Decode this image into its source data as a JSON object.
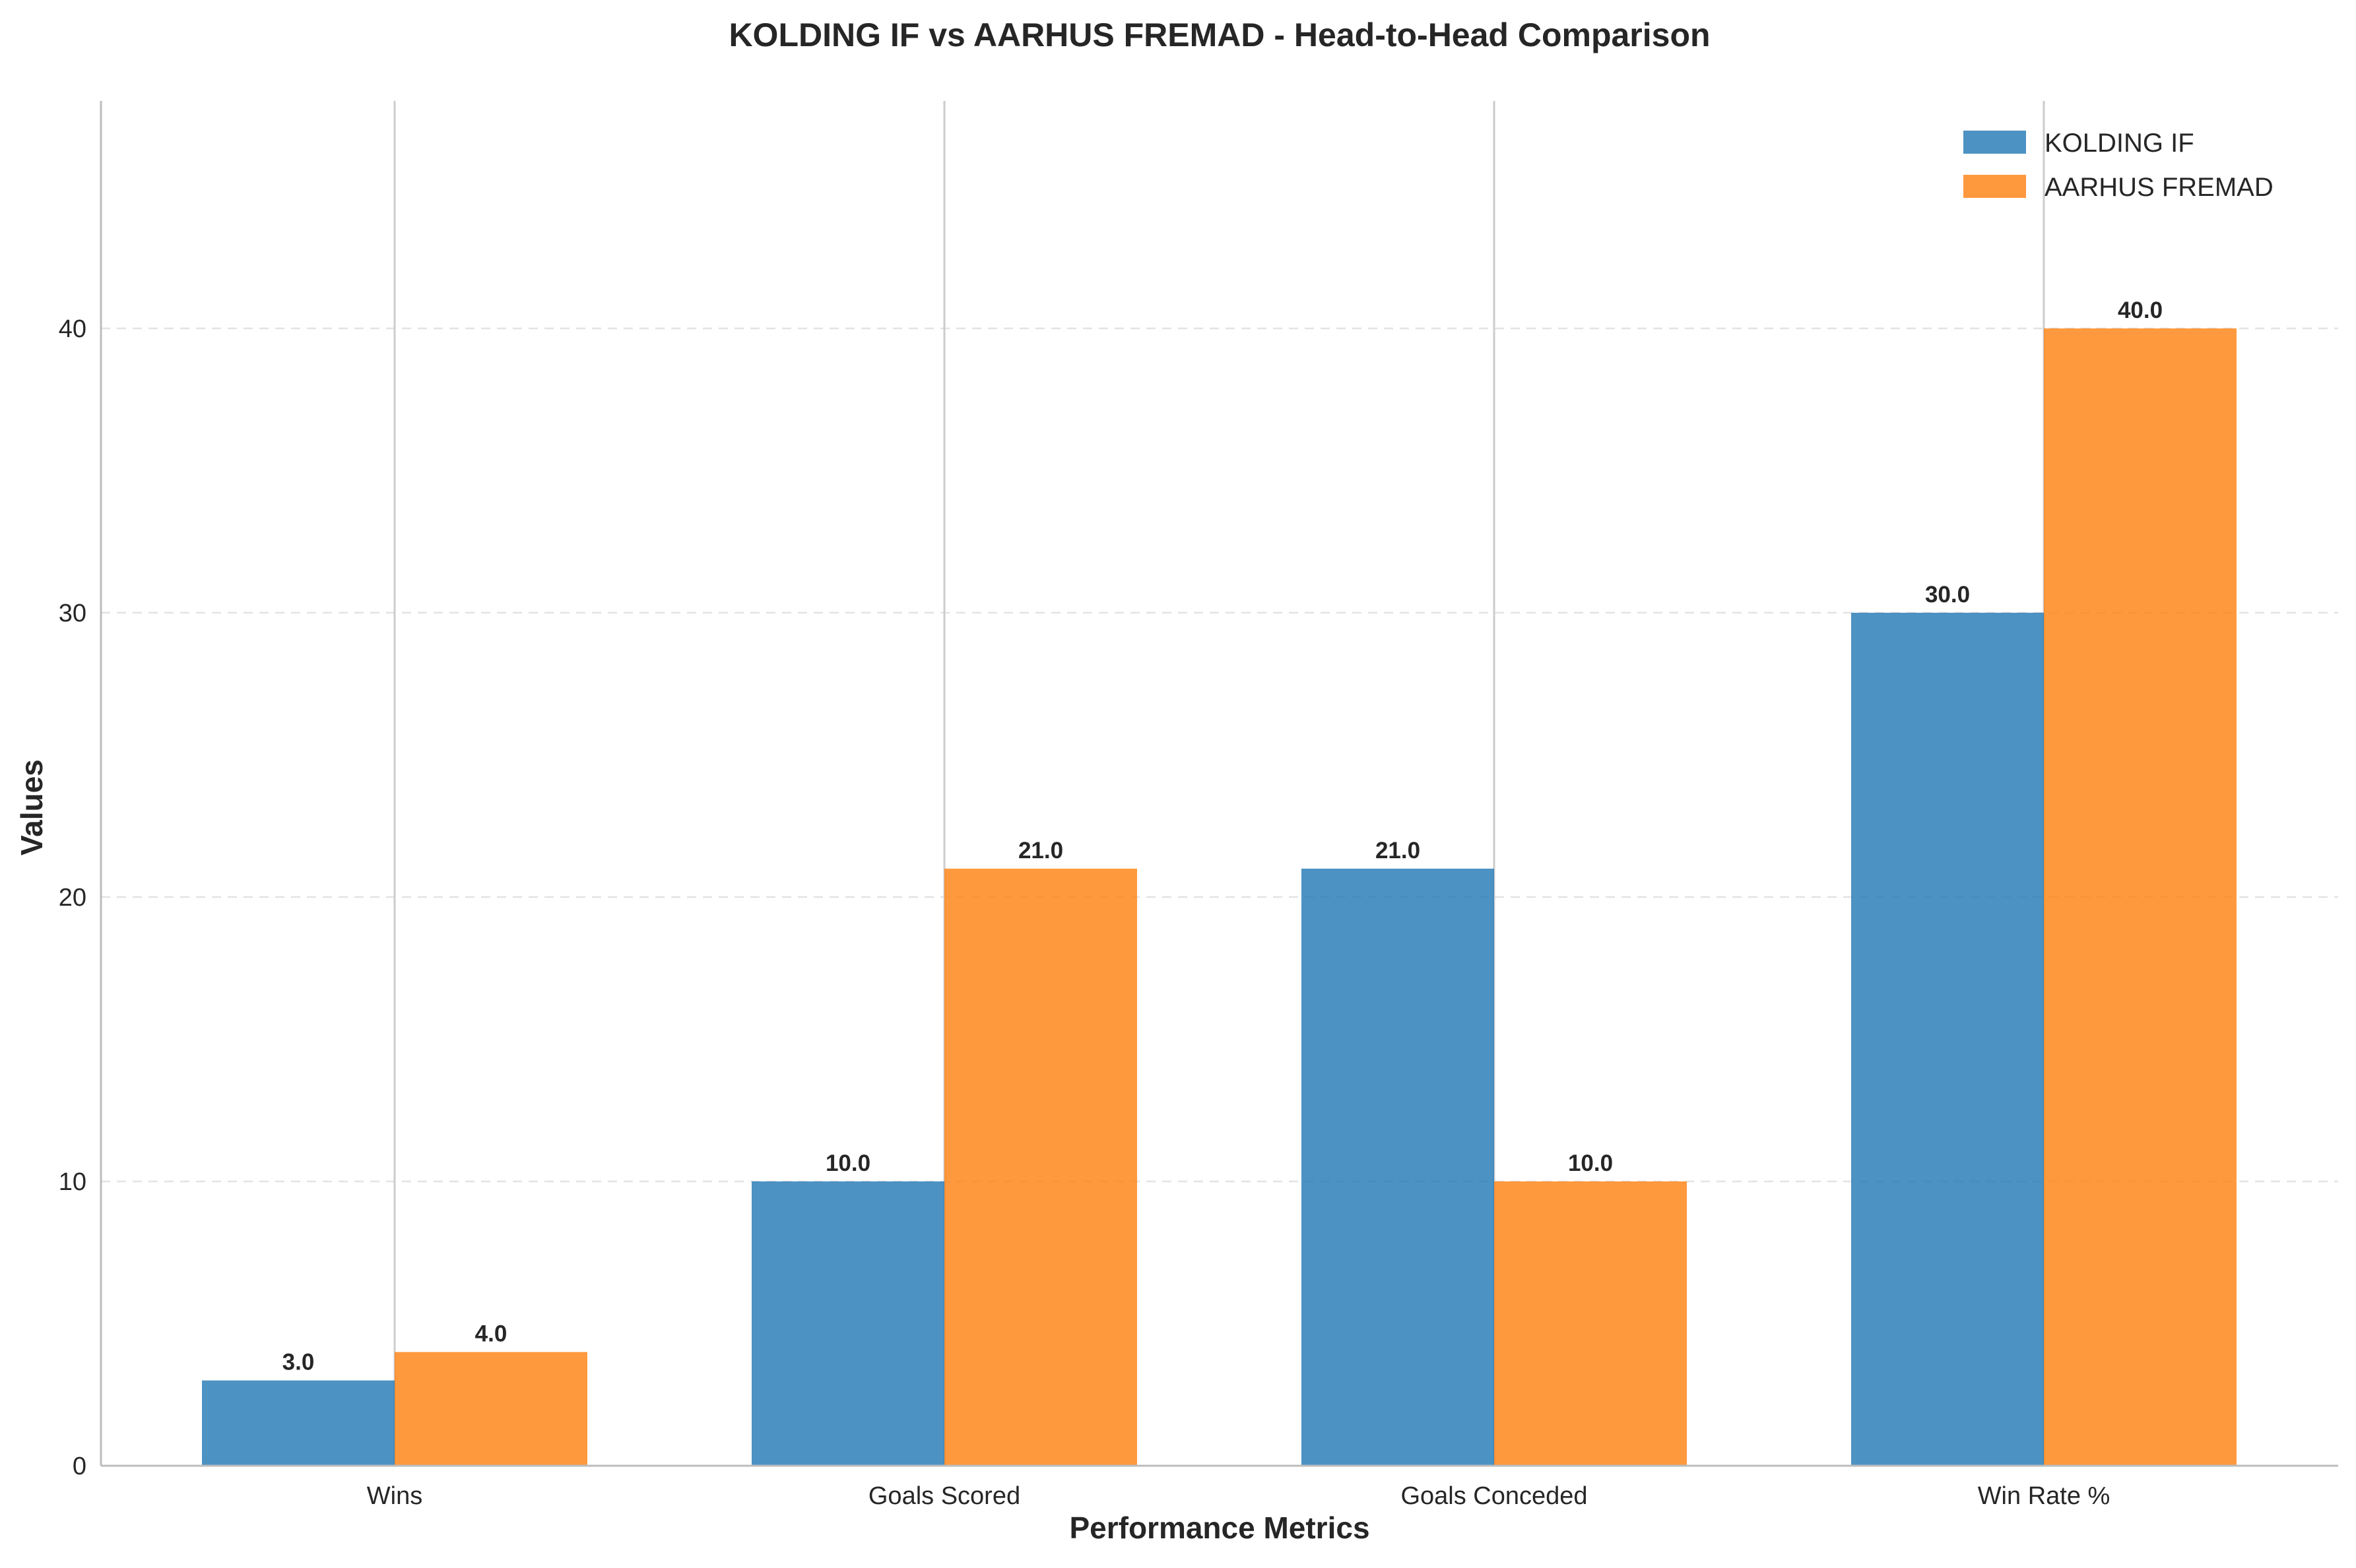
{
  "chart_data": {
    "type": "bar",
    "title": "KOLDING IF vs AARHUS FREMAD - Head-to-Head Comparison",
    "xlabel": "Performance Metrics",
    "ylabel": "Values",
    "categories": [
      "Wins",
      "Goals Scored",
      "Goals Conceded",
      "Win Rate %"
    ],
    "series": [
      {
        "name": "KOLDING IF",
        "values": [
          3,
          10,
          21,
          30
        ],
        "color": "#1f77b4"
      },
      {
        "name": "AARHUS FREMAD",
        "values": [
          4,
          21,
          10,
          40
        ],
        "color": "#ff7f0e"
      }
    ],
    "ylim": [
      0,
      48
    ],
    "yticks": [
      0,
      10,
      20,
      30,
      40
    ],
    "value_label_format": "one-decimal",
    "grid": "y-dashed",
    "legend_position": "top-right"
  }
}
